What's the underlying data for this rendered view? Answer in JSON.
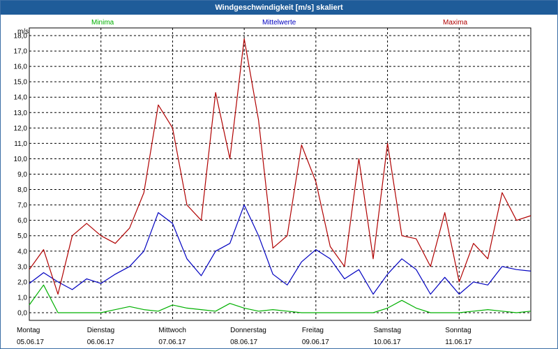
{
  "window": {
    "title": "Windgeschwindigkeit [m/s] skaliert"
  },
  "chart_data": {
    "type": "line",
    "title": "Windgeschwindigkeit [m/s] skaliert",
    "ylabel": "m/s",
    "ylim": [
      -0.5,
      18.5
    ],
    "yticks": [
      "18,0",
      "17,0",
      "16,0",
      "15,0",
      "14,0",
      "13,0",
      "12,0",
      "11,0",
      "10,0",
      "9,0",
      "8,0",
      "7,0",
      "6,0",
      "5,0",
      "4,0",
      "3,0",
      "2,0",
      "1,0",
      "0,0"
    ],
    "grid": true,
    "legend_position": "top",
    "x_day_labels": [
      {
        "day": "Montag",
        "date": "05.06.17"
      },
      {
        "day": "Dienstag",
        "date": "06.06.17"
      },
      {
        "day": "Mittwoch",
        "date": "07.06.17"
      },
      {
        "day": "Donnerstag",
        "date": "08.06.17"
      },
      {
        "day": "Freitag",
        "date": "09.06.17"
      },
      {
        "day": "Samstag",
        "date": "10.06.17"
      },
      {
        "day": "Sonntag",
        "date": "11.06.17"
      }
    ],
    "x": [
      0.0,
      0.2,
      0.4,
      0.6,
      0.8,
      1.0,
      1.2,
      1.4,
      1.6,
      1.8,
      2.0,
      2.2,
      2.4,
      2.6,
      2.8,
      3.0,
      3.2,
      3.4,
      3.6,
      3.8,
      4.0,
      4.2,
      4.4,
      4.6,
      4.8,
      5.0,
      5.2,
      5.4,
      5.6,
      5.8,
      6.0,
      6.2,
      6.4,
      6.6,
      6.8,
      7.0
    ],
    "series": [
      {
        "name": "Minima",
        "color": "#00b000",
        "values": [
          0.5,
          1.8,
          0.0,
          0.0,
          0.0,
          0.0,
          0.2,
          0.4,
          0.2,
          0.1,
          0.5,
          0.3,
          0.2,
          0.1,
          0.6,
          0.3,
          0.1,
          0.2,
          0.1,
          0.0,
          0.0,
          0.0,
          0.0,
          0.0,
          0.0,
          0.3,
          0.8,
          0.3,
          0.0,
          0.0,
          0.0,
          0.1,
          0.2,
          0.1,
          0.0,
          0.1
        ]
      },
      {
        "name": "Mittelwerte",
        "color": "#0000c0",
        "values": [
          1.9,
          2.6,
          2.0,
          1.5,
          2.2,
          1.9,
          2.5,
          3.0,
          4.0,
          6.5,
          5.8,
          3.5,
          2.4,
          4.0,
          4.5,
          7.0,
          5.0,
          2.5,
          1.8,
          3.3,
          4.1,
          3.5,
          2.2,
          2.8,
          1.2,
          2.5,
          3.5,
          2.8,
          1.2,
          2.3,
          1.2,
          2.0,
          1.8,
          3.0,
          2.8,
          2.7
        ]
      },
      {
        "name": "Maxima",
        "color": "#b00000",
        "values": [
          2.8,
          4.1,
          1.2,
          5.0,
          5.8,
          5.0,
          4.5,
          5.5,
          7.8,
          13.5,
          12.0,
          7.0,
          6.0,
          14.3,
          10.0,
          17.8,
          12.5,
          4.2,
          5.0,
          10.9,
          8.5,
          4.3,
          3.0,
          10.0,
          3.5,
          11.0,
          5.0,
          4.8,
          3.0,
          6.5,
          2.0,
          4.5,
          3.5,
          7.8,
          6.0,
          6.3
        ]
      }
    ]
  }
}
